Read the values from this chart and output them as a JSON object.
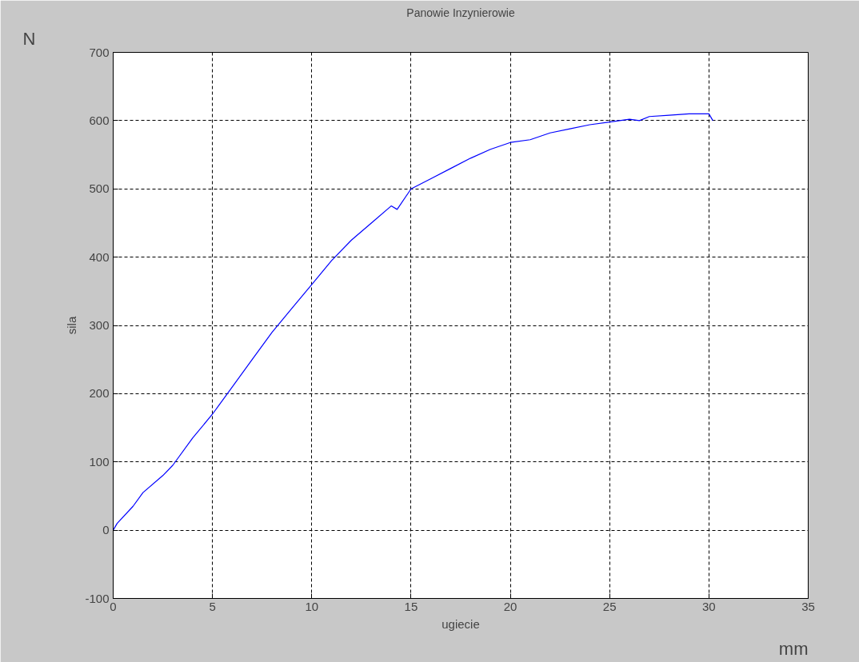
{
  "chart_data": {
    "type": "line",
    "title": "Panowie Inzynierowie",
    "xlabel": "ugiecie",
    "ylabel": "sila",
    "annotations": [
      "N",
      "mm"
    ],
    "x": [
      0,
      0.2,
      1,
      1.5,
      2.5,
      3,
      4,
      5,
      6,
      7,
      8,
      9,
      10,
      11,
      12,
      13,
      14,
      14.3,
      15,
      16,
      17,
      18,
      19,
      20,
      21,
      22,
      23,
      24,
      25,
      26,
      26.5,
      27,
      28,
      29,
      30,
      30.2
    ],
    "series": [
      {
        "color": "#0000ff",
        "values": [
          0,
          10,
          35,
          55,
          80,
          95,
          135,
          170,
          210,
          250,
          290,
          325,
          360,
          395,
          425,
          450,
          475,
          470,
          500,
          515,
          530,
          545,
          558,
          568,
          572,
          582,
          588,
          594,
          598,
          602,
          600,
          606,
          608,
          610,
          610,
          600
        ]
      }
    ],
    "xlim": [
      0,
      35
    ],
    "ylim": [
      -100,
      700
    ],
    "xticks": [
      0,
      5,
      10,
      15,
      20,
      25,
      30,
      35
    ],
    "yticks": [
      -100,
      0,
      100,
      200,
      300,
      400,
      500,
      600,
      700
    ],
    "grid": true,
    "line_style": "solid"
  }
}
